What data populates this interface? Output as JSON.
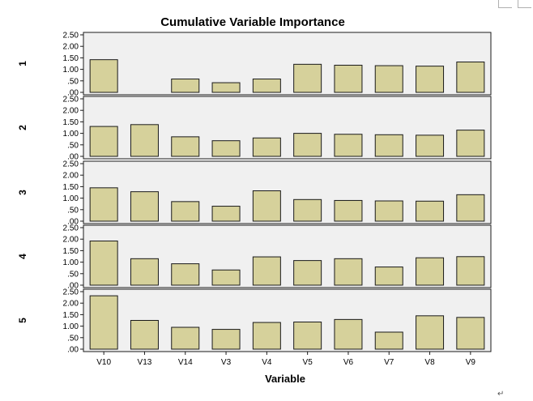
{
  "chart_data": {
    "type": "bar",
    "title": "Cumulative Variable Importance",
    "xlabel": "Variable",
    "ylabel": "",
    "categories": [
      "V10",
      "V13",
      "V14",
      "V3",
      "V4",
      "V5",
      "V6",
      "V7",
      "V8",
      "V9"
    ],
    "ylim": [
      0,
      2.5
    ],
    "yticks": [
      ".00",
      ".50",
      "1.00",
      "1.50",
      "2.00",
      "2.50"
    ],
    "grid": false,
    "panels": [
      {
        "label": "1",
        "values": [
          1.42,
          0.0,
          0.58,
          0.42,
          0.58,
          1.22,
          1.18,
          1.16,
          1.14,
          1.32
        ]
      },
      {
        "label": "2",
        "values": [
          1.3,
          1.38,
          0.85,
          0.68,
          0.8,
          1.0,
          0.96,
          0.94,
          0.92,
          1.14
        ]
      },
      {
        "label": "3",
        "values": [
          1.45,
          1.28,
          0.85,
          0.65,
          1.32,
          0.94,
          0.9,
          0.88,
          0.87,
          1.15
        ]
      },
      {
        "label": "4",
        "values": [
          1.92,
          1.15,
          0.93,
          0.66,
          1.23,
          1.07,
          1.15,
          0.79,
          1.19,
          1.24
        ]
      },
      {
        "label": "5",
        "values": [
          2.32,
          1.25,
          0.95,
          0.86,
          1.16,
          1.18,
          1.29,
          0.74,
          1.45,
          1.38
        ]
      }
    ]
  },
  "colors": {
    "bar_fill": "#d6d19b",
    "bar_stroke": "#1a1a1a",
    "panel_bg": "#f0f0f0",
    "frame": "#1a1a1a",
    "text": "#000000"
  },
  "decor": {
    "return_symbol": "↵"
  }
}
